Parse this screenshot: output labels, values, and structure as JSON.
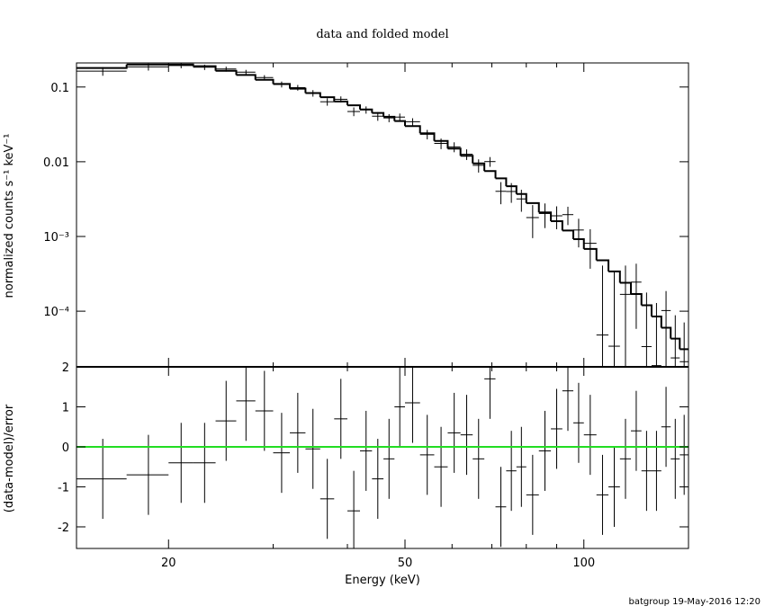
{
  "chart_data": [
    {
      "type": "spectrum",
      "title": "data and folded model",
      "ylabel": "normalized counts s⁻¹ keV⁻¹",
      "xscale": "log",
      "yscale": "log",
      "xlim": [
        14,
        150
      ],
      "ylim": [
        1.8e-05,
        0.21
      ],
      "yticks": [
        0.1,
        0.01,
        {
          "value": 0.001,
          "label": "10⁻³"
        },
        {
          "value": 0.0001,
          "label": "10⁻⁴"
        }
      ],
      "bins": [
        14,
        17,
        20,
        22,
        24,
        26,
        28,
        30,
        32,
        34,
        36,
        38,
        40,
        42,
        44,
        46,
        48,
        50,
        53,
        56,
        59,
        62,
        65,
        68,
        71,
        74,
        77,
        80,
        84,
        88,
        92,
        96,
        100,
        105,
        110,
        115,
        120,
        125,
        130,
        135,
        140,
        145,
        150
      ],
      "data": {
        "color": "#000000",
        "values": [
          0.163,
          0.186,
          0.194,
          0.184,
          0.174,
          0.158,
          0.134,
          0.1085,
          0.098,
          0.0826,
          0.0635,
          0.0685,
          0.047,
          0.0495,
          0.0407,
          0.0386,
          0.0396,
          0.0343,
          0.0233,
          0.0176,
          0.0158,
          0.0126,
          0.00896,
          0.01005,
          0.00402,
          0.004,
          0.00318,
          0.00179,
          0.00203,
          0.00189,
          0.00196,
          0.00122,
          0.00081,
          4.8e-05,
          3.4e-05,
          0.000168,
          0.000245,
          3.36e-05,
          1.87e-05,
          0.000102,
          2.37e-05,
          2.11e-05
        ],
        "errors": [
          0.0216,
          0.02,
          0.016,
          0.0152,
          0.0132,
          0.0116,
          0.01,
          0.0099,
          0.00855,
          0.0083,
          0.0073,
          0.0064,
          0.00627,
          0.0055,
          0.0054,
          0.0048,
          0.00455,
          0.0039,
          0.00336,
          0.00285,
          0.0024,
          0.00204,
          0.0018,
          0.0015,
          0.00132,
          0.00118,
          0.00104,
          0.00084,
          0.000735,
          0.00064,
          0.00054,
          0.000506,
          0.00044,
          0.00036,
          0.000306,
          0.00024,
          0.000187,
          0.000144,
          0.00011,
          8.4e-05,
          6.45e-05,
          4.96e-05
        ]
      },
      "model": {
        "color": "#000000",
        "values": [
          0.18,
          0.2,
          0.2,
          0.19,
          0.165,
          0.145,
          0.125,
          0.11,
          0.095,
          0.083,
          0.073,
          0.064,
          0.057,
          0.05,
          0.045,
          0.04,
          0.035,
          0.03,
          0.024,
          0.019,
          0.015,
          0.012,
          0.0095,
          0.0075,
          0.006,
          0.0047,
          0.0037,
          0.0028,
          0.0021,
          0.0016,
          0.0012,
          0.00092,
          0.00068,
          0.00048,
          0.00034,
          0.00024,
          0.00017,
          0.00012,
          8.5e-05,
          6e-05,
          4.3e-05,
          3.1e-05
        ]
      }
    },
    {
      "type": "residual",
      "xlabel": "Energy (keV)",
      "ylabel": "(data-model)/error",
      "xscale": "log",
      "xlim": [
        14,
        150
      ],
      "ylim": [
        -2.54,
        2
      ],
      "xticks": [
        20,
        50,
        100
      ],
      "xminor_ticks": [
        30,
        40,
        60,
        70,
        80,
        90
      ],
      "yticks": [
        -2,
        -1,
        0,
        1,
        2
      ],
      "color": "#000000",
      "values": [
        -0.8,
        -0.7,
        -0.4,
        -0.4,
        0.65,
        1.15,
        0.9,
        -0.15,
        0.35,
        -0.05,
        -1.3,
        0.7,
        -1.6,
        -0.1,
        -0.8,
        -0.3,
        1.0,
        1.1,
        -0.2,
        -0.5,
        0.35,
        0.3,
        -0.3,
        1.7,
        -1.5,
        -0.6,
        -0.5,
        -1.2,
        -0.1,
        0.45,
        1.4,
        0.6,
        0.3,
        -1.2,
        -1.0,
        -0.3,
        0.4,
        -0.6,
        -0.6,
        0.5,
        -0.3,
        -0.2
      ],
      "errors": [
        1,
        1,
        1,
        1,
        1,
        1,
        1,
        1,
        1,
        1,
        1,
        1,
        1,
        1,
        1,
        1,
        1,
        1,
        1,
        1,
        1,
        1,
        1,
        1,
        1,
        1,
        1,
        1,
        1,
        1,
        1,
        1,
        1,
        1,
        1,
        1,
        1,
        1,
        1,
        1,
        1,
        1
      ],
      "reference_line": {
        "value": 0,
        "color": "#22dd22"
      }
    }
  ],
  "footer": "batgroup 19-May-2016 12:20"
}
